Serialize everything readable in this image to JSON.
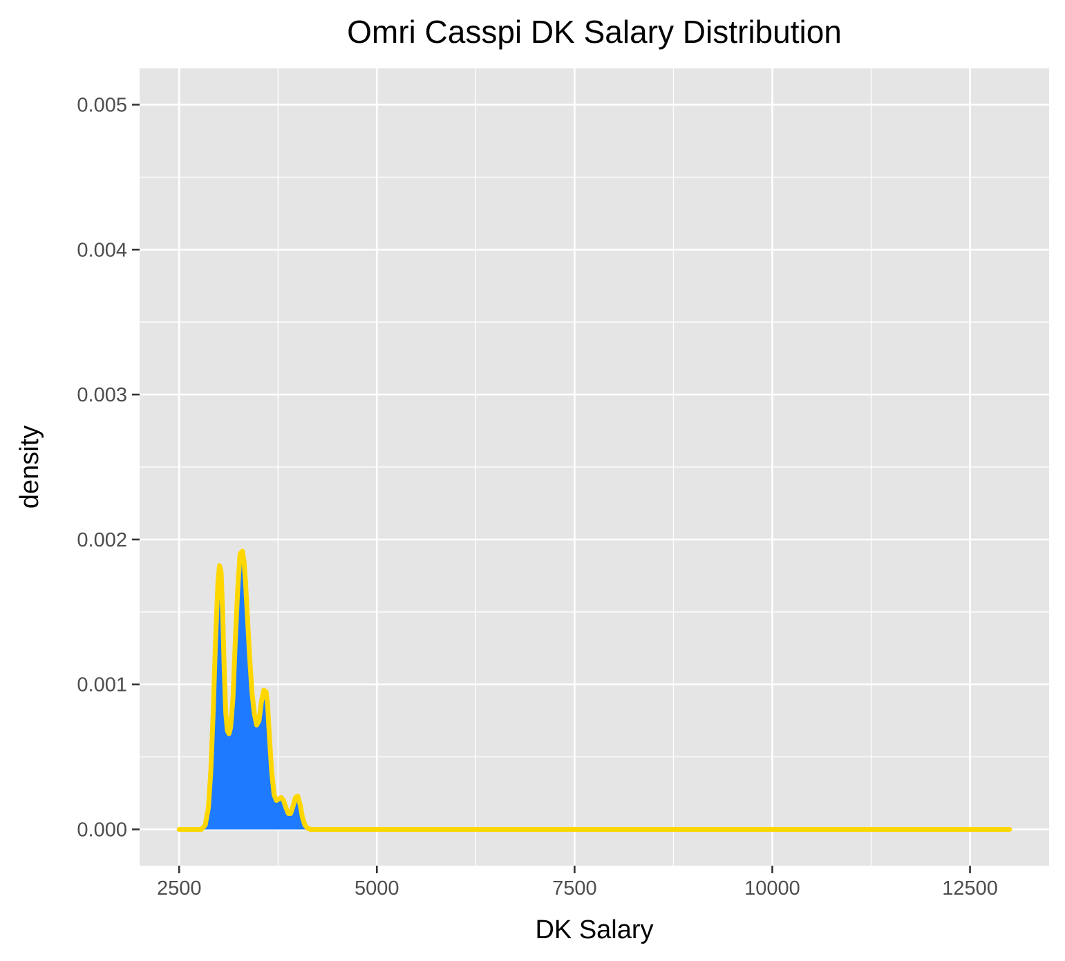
{
  "chart_data": {
    "type": "area",
    "title": "Omri Casspi DK Salary Distribution",
    "xlabel": "DK Salary",
    "ylabel": "density",
    "xlim": [
      2000,
      13500
    ],
    "ylim": [
      -0.00025,
      0.00525
    ],
    "x_ticks": [
      2500,
      5000,
      7500,
      10000,
      12500
    ],
    "x_tick_labels": [
      "2500",
      "5000",
      "7500",
      "10000",
      "12500"
    ],
    "y_ticks": [
      0,
      0.001,
      0.002,
      0.003,
      0.004,
      0.005
    ],
    "y_tick_labels": [
      "0.000",
      "0.001",
      "0.002",
      "0.003",
      "0.004",
      "0.005"
    ],
    "grid": true,
    "legend": "none",
    "colors": {
      "panel_background": "#e5e5e5",
      "grid": "#ffffff",
      "fill": "#1e7bff",
      "line": "#ffd700",
      "tick": "#333333"
    },
    "series": [
      {
        "x": [
          2500,
          2780,
          2830,
          2870,
          2900,
          2930,
          2960,
          2990,
          3010,
          3030,
          3050,
          3070,
          3090,
          3110,
          3130,
          3150,
          3180,
          3210,
          3240,
          3270,
          3300,
          3320,
          3340,
          3360,
          3390,
          3420,
          3450,
          3480,
          3510,
          3540,
          3570,
          3600,
          3620,
          3640,
          3670,
          3700,
          3730,
          3760,
          3790,
          3820,
          3850,
          3880,
          3910,
          3940,
          3970,
          4000,
          4030,
          4060,
          4090,
          4120,
          4160,
          4500,
          13000
        ],
        "y": [
          0,
          0,
          3e-05,
          0.00015,
          0.0004,
          0.0008,
          0.0013,
          0.0017,
          0.00182,
          0.00178,
          0.0015,
          0.0011,
          0.0008,
          0.00068,
          0.00066,
          0.0007,
          0.0009,
          0.0013,
          0.00165,
          0.0019,
          0.00192,
          0.00185,
          0.0017,
          0.0015,
          0.0012,
          0.00095,
          0.0008,
          0.00072,
          0.00075,
          0.00088,
          0.00096,
          0.00095,
          0.00085,
          0.00065,
          0.0004,
          0.00024,
          0.0002,
          0.00021,
          0.00022,
          0.0002,
          0.00015,
          0.00011,
          0.00011,
          0.00016,
          0.00022,
          0.00023,
          0.00017,
          8e-05,
          3e-05,
          1e-05,
          0,
          0,
          0
        ]
      }
    ]
  }
}
